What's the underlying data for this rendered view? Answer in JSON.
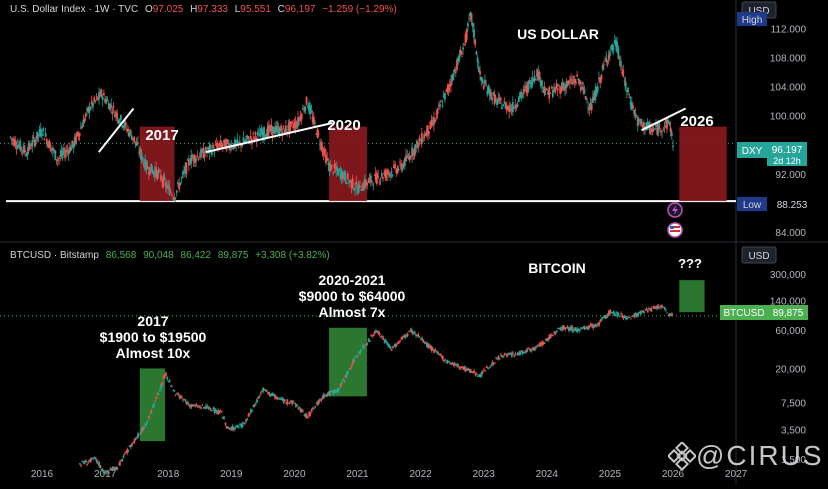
{
  "header_dxy": {
    "name": "U.S. Dollar Index · 1W · TVC",
    "o_label": "O",
    "o": "97.025",
    "h_label": "H",
    "h": "97.333",
    "l_label": "L",
    "l": "95.551",
    "c_label": "C",
    "c": "96.197",
    "chg": "−1.259 (−1.29%)"
  },
  "header_btc": {
    "name": "BTCUSD · Bitstamp",
    "v1": "86,568",
    "v2": "90,048",
    "v3": "86,422",
    "v4": "89,875",
    "chg": "+3,308 (+3.82%)"
  },
  "currency_top": "USD",
  "currency_bottom": "USD",
  "badges": {
    "high": "High",
    "dxy_label": "DXY",
    "dxy_price": "96.197",
    "dxy_countdown": "2d 12h",
    "low_label": "Low",
    "low_price": "88.253",
    "btc_label": "BTCUSD",
    "btc_price": "89,875"
  },
  "watermark": "@CIRUS",
  "colors": {
    "bg": "#000000",
    "up": "#26a69a",
    "down": "#ef5350",
    "red_box": "#8b1a1f",
    "green_box": "#2e7d32",
    "axis_text": "#b2b5be",
    "badge_blue": "#1e3a8a",
    "badge_teal": "#26a69a",
    "badge_green": "#4caf50"
  },
  "chart_data": [
    {
      "type": "candlestick",
      "title": "US DOLLAR",
      "ylabel": "USD",
      "ylim": [
        84,
        114
      ],
      "y_ticks": [
        "112.000",
        "108.000",
        "104.000",
        "100.000",
        "92.000",
        "84.000"
      ],
      "x_ticks": [
        "2016",
        "2017",
        "2018",
        "2019",
        "2020",
        "2021",
        "2022",
        "2023",
        "2024",
        "2025",
        "2026",
        "2027"
      ],
      "series": [
        {
          "x": [
            2015.5,
            2015.75,
            2016.0,
            2016.25,
            2016.5,
            2016.75,
            2016.95,
            2017.2,
            2017.45,
            2017.65,
            2017.85,
            2018.0,
            2018.1,
            2018.35,
            2018.6,
            2018.85,
            2019.1,
            2019.35,
            2019.6,
            2019.85,
            2020.05,
            2020.2,
            2020.35,
            2020.55,
            2020.75,
            2021.0,
            2021.2,
            2021.45,
            2021.7,
            2021.95,
            2022.2,
            2022.45,
            2022.7,
            2022.8,
            2022.95,
            2023.2,
            2023.45,
            2023.7,
            2023.85,
            2024.0,
            2024.25,
            2024.5,
            2024.7,
            2024.95,
            2025.1,
            2025.25,
            2025.45,
            2025.7,
            2025.95,
            2026.0
          ],
          "y": [
            97,
            95,
            98,
            94,
            96,
            101,
            103,
            100,
            97,
            93,
            92,
            90,
            89,
            94,
            95,
            96,
            96,
            97,
            98,
            98,
            99,
            102,
            98,
            93,
            92,
            90,
            91,
            92,
            93,
            96,
            99,
            104,
            110,
            114,
            105,
            102,
            101,
            104,
            106,
            103,
            104,
            105,
            101,
            108,
            110,
            104,
            99,
            98,
            99,
            96.197
          ]
        }
      ],
      "annotations": [
        {
          "text": "2017"
        },
        {
          "text": "2020"
        },
        {
          "text": "2026"
        },
        {
          "text": "US DOLLAR"
        }
      ],
      "boxes": [
        {
          "color": "red",
          "x": [
            2017.55,
            2018.1
          ],
          "y": [
            88.253,
            98.5
          ]
        },
        {
          "color": "red",
          "x": [
            2020.55,
            2021.15
          ],
          "y": [
            88.253,
            98.5
          ]
        },
        {
          "color": "red",
          "x": [
            2026.1,
            2026.85
          ],
          "y": [
            88.253,
            98.5
          ]
        }
      ],
      "trendlines": [
        {
          "x": [
            2016.9,
            2017.45
          ],
          "y": [
            95,
            101
          ]
        },
        {
          "x": [
            2018.6,
            2020.6
          ],
          "y": [
            95,
            99
          ]
        },
        {
          "x": [
            2025.5,
            2026.2
          ],
          "y": [
            98,
            101
          ]
        }
      ],
      "support_line": 88.253
    },
    {
      "type": "line",
      "title": "BITCOIN",
      "ylabel": "USD",
      "scale": "log",
      "ylim": [
        1300,
        420000
      ],
      "y_ticks": [
        "300,000",
        "140,000",
        "60,000",
        "20,000",
        "7,500",
        "3,500",
        "1,500"
      ],
      "x_ticks": [
        "2016",
        "2017",
        "2018",
        "2019",
        "2020",
        "2021",
        "2022",
        "2023",
        "2024",
        "2025",
        "2026",
        "2027"
      ],
      "series": [
        {
          "x": [
            2016.6,
            2016.85,
            2017.0,
            2017.2,
            2017.45,
            2017.65,
            2017.85,
            2017.96,
            2018.1,
            2018.35,
            2018.6,
            2018.85,
            2018.95,
            2019.2,
            2019.5,
            2019.8,
            2020.0,
            2020.2,
            2020.45,
            2020.7,
            2020.85,
            2021.0,
            2021.3,
            2021.55,
            2021.85,
            2022.1,
            2022.4,
            2022.7,
            2022.95,
            2023.25,
            2023.5,
            2023.8,
            2024.0,
            2024.2,
            2024.5,
            2024.8,
            2025.0,
            2025.3,
            2025.6,
            2025.8,
            2025.95,
            2026.0
          ],
          "y": [
            1300,
            1500,
            1000,
            1200,
            2500,
            4000,
            10000,
            17000,
            10000,
            7000,
            6500,
            5500,
            3500,
            4000,
            11000,
            8000,
            7500,
            5000,
            9000,
            11000,
            18000,
            30000,
            58000,
            35000,
            60000,
            40000,
            25000,
            20000,
            16500,
            28000,
            30000,
            35000,
            45000,
            65000,
            60000,
            70000,
            100000,
            85000,
            105000,
            120000,
            95000,
            89875
          ]
        }
      ],
      "annotations": [
        {
          "text": "2017\n$1900 to $19500\nAlmost 10x"
        },
        {
          "text": "2020-2021\n$9000 to $64000\nAlmost 7x"
        },
        {
          "text": "???"
        },
        {
          "text": "BITCOIN"
        }
      ],
      "boxes": [
        {
          "color": "green",
          "x": [
            2017.55,
            2017.95
          ],
          "y": [
            2500,
            20000
          ]
        },
        {
          "color": "green",
          "x": [
            2020.55,
            2021.15
          ],
          "y": [
            9000,
            64000
          ]
        },
        {
          "color": "green",
          "x": [
            2026.1,
            2026.5
          ],
          "y": [
            100000,
            250000
          ]
        }
      ]
    }
  ]
}
